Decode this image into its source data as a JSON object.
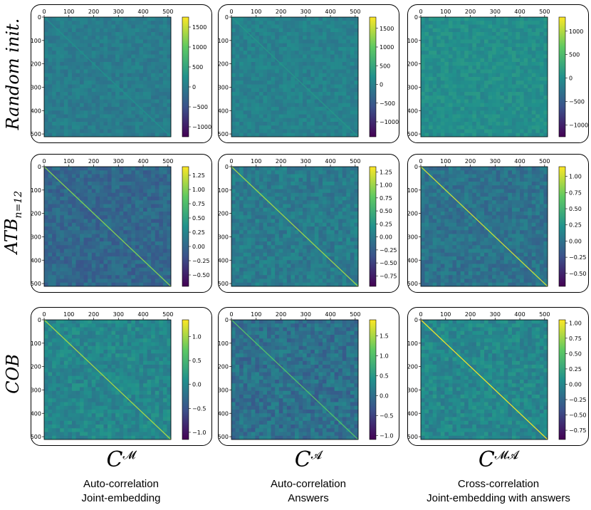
{
  "row_labels": [
    {
      "text": "Random init.",
      "sub": ""
    },
    {
      "text": "ATB",
      "sub": "n=12"
    },
    {
      "text": "COB",
      "sub": ""
    }
  ],
  "columns": [
    {
      "symbol": "C",
      "sup": "𝓜",
      "caption_line1": "Auto-correlation",
      "caption_line2": "Joint-embedding"
    },
    {
      "symbol": "C",
      "sup": "𝓐",
      "caption_line1": "Auto-correlation",
      "caption_line2": "Answers"
    },
    {
      "symbol": "C",
      "sup": "𝓜𝓐",
      "caption_line1": "Cross-correlation",
      "caption_line2": "Joint-embedding with answers"
    }
  ],
  "colormap": [
    "#440154",
    "#3b528b",
    "#21918c",
    "#5ec962",
    "#fde725"
  ],
  "chart_data": [
    {
      "type": "heatmap",
      "row": 0,
      "col": 0,
      "xticks": [
        0,
        100,
        200,
        300,
        400,
        500
      ],
      "yticks": [
        0,
        100,
        200,
        300,
        400,
        500
      ],
      "xlim": [
        0,
        512
      ],
      "ylim": [
        512,
        0
      ],
      "diagonal": true,
      "colorbar": {
        "range": [
          -1250,
          1750
        ],
        "ticks": [
          -1000,
          -500,
          0,
          500,
          1000,
          1500
        ],
        "tick_labels": [
          "−1000",
          "−500",
          "0",
          "500",
          "1000",
          "1500"
        ]
      }
    },
    {
      "type": "heatmap",
      "row": 0,
      "col": 1,
      "xticks": [
        0,
        100,
        200,
        300,
        400,
        500
      ],
      "yticks": [
        0,
        100,
        200,
        300,
        400,
        500
      ],
      "xlim": [
        0,
        512
      ],
      "ylim": [
        512,
        0
      ],
      "diagonal": true,
      "colorbar": {
        "range": [
          -1400,
          1800
        ],
        "ticks": [
          -1000,
          -500,
          0,
          500,
          1000,
          1500
        ],
        "tick_labels": [
          "−1000",
          "−500",
          "0",
          "500",
          "1000",
          "1500"
        ]
      }
    },
    {
      "type": "heatmap",
      "row": 0,
      "col": 2,
      "xticks": [
        0,
        100,
        200,
        300,
        400,
        500
      ],
      "yticks": [
        0,
        100,
        200,
        300,
        400,
        500
      ],
      "xlim": [
        0,
        512
      ],
      "ylim": [
        512,
        0
      ],
      "diagonal": false,
      "colorbar": {
        "range": [
          -1250,
          1300
        ],
        "ticks": [
          -1000,
          -500,
          0,
          500,
          1000
        ],
        "tick_labels": [
          "−1000",
          "−500",
          "0",
          "500",
          "1000"
        ]
      }
    },
    {
      "type": "heatmap",
      "row": 1,
      "col": 0,
      "xticks": [
        0,
        100,
        200,
        300,
        400,
        500
      ],
      "yticks": [
        0,
        100,
        200,
        300,
        400,
        500
      ],
      "xlim": [
        0,
        512
      ],
      "ylim": [
        512,
        0
      ],
      "diagonal": true,
      "colorbar": {
        "range": [
          -0.7,
          1.4
        ],
        "ticks": [
          -0.5,
          -0.25,
          0,
          0.25,
          0.5,
          0.75,
          1.0,
          1.25
        ],
        "tick_labels": [
          "−0.50",
          "−0.25",
          "0.00",
          "0.25",
          "0.50",
          "0.75",
          "1.00",
          "1.25"
        ]
      }
    },
    {
      "type": "heatmap",
      "row": 1,
      "col": 1,
      "xticks": [
        0,
        100,
        200,
        300,
        400,
        500
      ],
      "yticks": [
        0,
        100,
        200,
        300,
        400,
        500
      ],
      "xlim": [
        0,
        512
      ],
      "ylim": [
        512,
        0
      ],
      "diagonal": true,
      "colorbar": {
        "range": [
          -0.95,
          1.35
        ],
        "ticks": [
          -0.75,
          -0.5,
          -0.25,
          0,
          0.25,
          0.5,
          0.75,
          1.0,
          1.25
        ],
        "tick_labels": [
          "−0.75",
          "−0.50",
          "−0.25",
          "0.00",
          "0.25",
          "0.50",
          "0.75",
          "1.00",
          "1.25"
        ]
      }
    },
    {
      "type": "heatmap",
      "row": 1,
      "col": 2,
      "xticks": [
        0,
        100,
        200,
        300,
        400,
        500
      ],
      "yticks": [
        0,
        100,
        200,
        300,
        400,
        500
      ],
      "xlim": [
        0,
        512
      ],
      "ylim": [
        512,
        0
      ],
      "diagonal": true,
      "colorbar": {
        "range": [
          -0.7,
          1.15
        ],
        "ticks": [
          -0.5,
          -0.25,
          0,
          0.25,
          0.5,
          0.75,
          1.0
        ],
        "tick_labels": [
          "−0.50",
          "−0.25",
          "0.00",
          "0.25",
          "0.50",
          "0.75",
          "1.00"
        ]
      }
    },
    {
      "type": "heatmap",
      "row": 2,
      "col": 0,
      "xticks": [
        0,
        100,
        200,
        300,
        400,
        500
      ],
      "yticks": [
        0,
        100,
        200,
        300,
        400,
        500
      ],
      "xlim": [
        0,
        512
      ],
      "ylim": [
        512,
        0
      ],
      "diagonal": true,
      "colorbar": {
        "range": [
          -1.15,
          1.35
        ],
        "ticks": [
          -1.0,
          -0.5,
          0,
          0.5,
          1.0
        ],
        "tick_labels": [
          "−1.0",
          "−0.5",
          "0.0",
          "0.5",
          "1.0"
        ]
      }
    },
    {
      "type": "heatmap",
      "row": 2,
      "col": 1,
      "xticks": [
        0,
        100,
        200,
        300,
        400,
        500
      ],
      "yticks": [
        0,
        100,
        200,
        300,
        400,
        500
      ],
      "xlim": [
        0,
        512
      ],
      "ylim": [
        512,
        0
      ],
      "diagonal": true,
      "colorbar": {
        "range": [
          -1.1,
          1.9
        ],
        "ticks": [
          -1.0,
          -0.5,
          0,
          0.5,
          1.0,
          1.5
        ],
        "tick_labels": [
          "−1.0",
          "−0.5",
          "0.0",
          "0.5",
          "1.0",
          "1.5"
        ]
      }
    },
    {
      "type": "heatmap",
      "row": 2,
      "col": 2,
      "xticks": [
        0,
        100,
        200,
        300,
        400,
        500
      ],
      "yticks": [
        0,
        100,
        200,
        300,
        400,
        500
      ],
      "xlim": [
        0,
        512
      ],
      "ylim": [
        512,
        0
      ],
      "diagonal": true,
      "colorbar": {
        "range": [
          -0.9,
          1.05
        ],
        "ticks": [
          -0.75,
          -0.5,
          -0.25,
          0,
          0.25,
          0.5,
          0.75,
          1.0
        ],
        "tick_labels": [
          "−0.75",
          "−0.50",
          "−0.25",
          "0.00",
          "0.25",
          "0.50",
          "0.75",
          "1.00"
        ]
      }
    }
  ]
}
